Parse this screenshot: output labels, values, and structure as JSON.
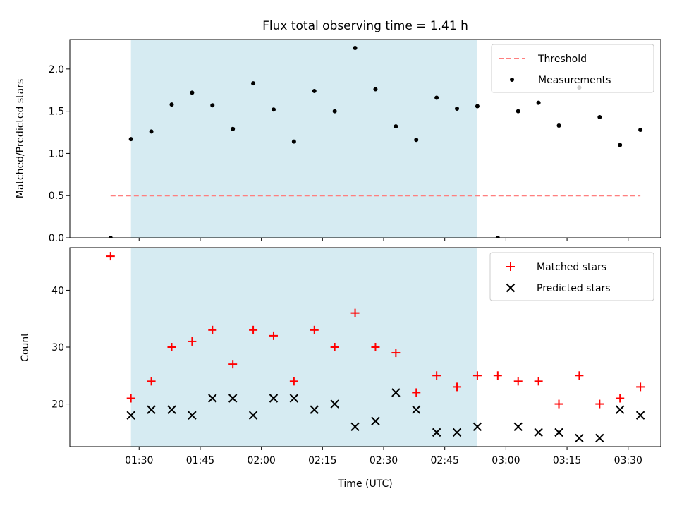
{
  "title": "Flux total observing time = 1.41 h",
  "xlabel": "Time (UTC)",
  "x_ticks": [
    "01:30",
    "01:45",
    "02:00",
    "02:15",
    "02:30",
    "02:45",
    "03:00",
    "03:15",
    "03:30"
  ],
  "colors": {
    "shade": "#add8e6",
    "threshold": "#ff7f7f",
    "measurements": "#000000",
    "matched": "#ff0000",
    "predicted": "#000000"
  },
  "chart_data": [
    {
      "type": "scatter",
      "panel": "top",
      "ylabel": "Matched/Predicted stars",
      "ylim": [
        0,
        2.35
      ],
      "y_ticks": [
        "0.0",
        "0.5",
        "1.0",
        "1.5",
        "2.0"
      ],
      "xlim": [
        "01:13",
        "03:38"
      ],
      "shaded_interval": [
        "01:28",
        "02:53"
      ],
      "legend": {
        "position": "top-right",
        "entries": [
          "Threshold",
          "Measurements"
        ]
      },
      "threshold": {
        "name": "Threshold",
        "y": 0.5,
        "x_range": [
          "01:23",
          "03:33"
        ]
      },
      "series": [
        {
          "name": "Measurements",
          "x": [
            "01:23",
            "01:28",
            "01:33",
            "01:38",
            "01:43",
            "01:48",
            "01:53",
            "01:58",
            "02:03",
            "02:08",
            "02:13",
            "02:18",
            "02:23",
            "02:28",
            "02:33",
            "02:38",
            "02:43",
            "02:48",
            "02:53",
            "02:58",
            "03:03",
            "03:08",
            "03:13",
            "03:18",
            "03:23",
            "03:28",
            "03:33"
          ],
          "y": [
            0.0,
            1.17,
            1.26,
            1.58,
            1.72,
            1.57,
            1.29,
            1.83,
            1.52,
            1.14,
            1.74,
            1.5,
            2.25,
            1.76,
            1.32,
            1.16,
            1.66,
            1.53,
            1.56,
            0.0,
            1.5,
            1.6,
            1.33,
            1.78,
            1.43,
            1.1,
            1.28
          ]
        }
      ]
    },
    {
      "type": "scatter",
      "panel": "bottom",
      "ylabel": "Count",
      "ylim": [
        12.5,
        47.5
      ],
      "y_ticks": [
        "20",
        "30",
        "40"
      ],
      "xlim": [
        "01:13",
        "03:38"
      ],
      "shaded_interval": [
        "01:28",
        "02:53"
      ],
      "legend": {
        "position": "top-right",
        "entries": [
          "Matched stars",
          "Predicted stars"
        ]
      },
      "series": [
        {
          "name": "Matched stars",
          "x": [
            "01:23",
            "01:28",
            "01:33",
            "01:38",
            "01:43",
            "01:48",
            "01:53",
            "01:58",
            "02:03",
            "02:08",
            "02:13",
            "02:18",
            "02:23",
            "02:28",
            "02:33",
            "02:38",
            "02:43",
            "02:48",
            "02:53",
            "02:58",
            "03:03",
            "03:08",
            "03:13",
            "03:18",
            "03:23",
            "03:28",
            "03:33"
          ],
          "y": [
            46,
            21,
            24,
            30,
            31,
            33,
            27,
            33,
            32,
            24,
            33,
            30,
            36,
            30,
            29,
            22,
            25,
            23,
            25,
            25,
            24,
            24,
            20,
            25,
            20,
            21,
            23
          ]
        },
        {
          "name": "Predicted stars",
          "x": [
            "01:28",
            "01:33",
            "01:38",
            "01:43",
            "01:48",
            "01:53",
            "01:58",
            "02:03",
            "02:08",
            "02:13",
            "02:18",
            "02:23",
            "02:28",
            "02:33",
            "02:38",
            "02:43",
            "02:48",
            "02:53",
            "03:03",
            "03:08",
            "03:13",
            "03:18",
            "03:23",
            "03:28",
            "03:33"
          ],
          "y": [
            18,
            19,
            19,
            18,
            21,
            21,
            18,
            21,
            21,
            19,
            20,
            16,
            17,
            22,
            19,
            15,
            15,
            16,
            16,
            15,
            15,
            14,
            14,
            19,
            18
          ]
        }
      ]
    }
  ]
}
